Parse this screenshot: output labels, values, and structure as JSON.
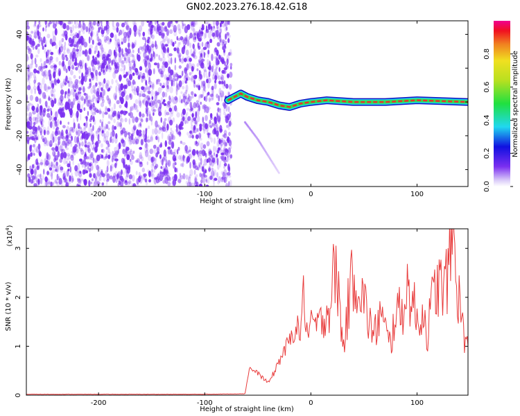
{
  "title": "GN02.2023.276.18.42.G18",
  "colors": {
    "spectrogram_noise": "#7b2ff0",
    "ridge_outer": "#1010c0",
    "ridge_mid": "#20d0f0",
    "ridge_core": "#30e050",
    "ridge_peak": "#e83030",
    "snr_line": "#e83a3a"
  },
  "colorbar": {
    "label": "Normalized spectral amplitude",
    "ticks": [
      "0.0",
      "0.2",
      "0.4",
      "0.6",
      "0.8"
    ],
    "range": [
      0,
      1
    ]
  },
  "chart_data": [
    {
      "type": "heatmap",
      "title": "GN02.2023.276.18.42.G18",
      "xlabel": "Height of straight line (km)",
      "ylabel": "Frequency (Hz)",
      "xlim": [
        -268,
        148
      ],
      "ylim": [
        -50,
        48
      ],
      "x_ticks": [
        "-200",
        "-100",
        "0",
        "100"
      ],
      "y_ticks": [
        "-40",
        "-20",
        "0",
        "20",
        "40"
      ],
      "noise_region_x": [
        -268,
        -75
      ],
      "ridge": {
        "x_start": -78,
        "x_end": 148,
        "frequency_points": [
          {
            "x": -78,
            "y": 1
          },
          {
            "x": -72,
            "y": 3
          },
          {
            "x": -66,
            "y": 5
          },
          {
            "x": -60,
            "y": 3
          },
          {
            "x": -50,
            "y": 1
          },
          {
            "x": -40,
            "y": 0
          },
          {
            "x": -30,
            "y": -2
          },
          {
            "x": -20,
            "y": -3
          },
          {
            "x": -10,
            "y": -1
          },
          {
            "x": 0,
            "y": 0
          },
          {
            "x": 15,
            "y": 1
          },
          {
            "x": 40,
            "y": 0
          },
          {
            "x": 70,
            "y": 0
          },
          {
            "x": 100,
            "y": 1
          },
          {
            "x": 148,
            "y": 0
          }
        ]
      },
      "faint_trail": [
        {
          "x": -62,
          "y": -12
        },
        {
          "x": -50,
          "y": -22
        },
        {
          "x": -40,
          "y": -32
        },
        {
          "x": -30,
          "y": -42
        }
      ]
    },
    {
      "type": "line",
      "xlabel": "Height of straight line (km)",
      "ylabel": "SNR (10 * v/v)",
      "y_scale_label": "(x10",
      "y_scale_exp": "4",
      "y_scale_close": ")",
      "xlim": [
        -268,
        148
      ],
      "ylim": [
        0,
        3.4
      ],
      "x_ticks": [
        "-200",
        "-100",
        "0",
        "100"
      ],
      "y_ticks": [
        "0",
        "1",
        "2",
        "3"
      ],
      "series": [
        {
          "points": [
            [
              -268,
              0.02
            ],
            [
              -200,
              0.02
            ],
            [
              -150,
              0.02
            ],
            [
              -100,
              0.02
            ],
            [
              -62,
              0.03
            ],
            [
              -58,
              0.55
            ],
            [
              -50,
              0.45
            ],
            [
              -45,
              0.35
            ],
            [
              -40,
              0.25
            ],
            [
              -35,
              0.45
            ],
            [
              -30,
              0.7
            ],
            [
              -25,
              0.9
            ],
            [
              -20,
              1.1
            ],
            [
              -15,
              1.4
            ],
            [
              -10,
              1.3
            ],
            [
              -7,
              2.05
            ],
            [
              -3,
              1.2
            ],
            [
              2,
              1.5
            ],
            [
              7,
              1.4
            ],
            [
              12,
              1.6
            ],
            [
              18,
              1.8
            ],
            [
              22,
              2.6
            ],
            [
              27,
              2.0
            ],
            [
              30,
              0.9
            ],
            [
              35,
              1.8
            ],
            [
              40,
              2.5
            ],
            [
              45,
              2.3
            ],
            [
              50,
              1.9
            ],
            [
              55,
              1.5
            ],
            [
              60,
              1.2
            ],
            [
              65,
              1.7
            ],
            [
              70,
              1.3
            ],
            [
              75,
              1.0
            ],
            [
              80,
              1.8
            ],
            [
              85,
              1.6
            ],
            [
              90,
              2.2
            ],
            [
              95,
              2.0
            ],
            [
              100,
              1.5
            ],
            [
              105,
              1.7
            ],
            [
              110,
              1.3
            ],
            [
              115,
              2.0
            ],
            [
              120,
              2.3
            ],
            [
              125,
              2.1
            ],
            [
              130,
              2.6
            ],
            [
              134,
              3.4
            ],
            [
              138,
              2.2
            ],
            [
              143,
              1.4
            ],
            [
              148,
              1.0
            ]
          ]
        }
      ]
    }
  ]
}
